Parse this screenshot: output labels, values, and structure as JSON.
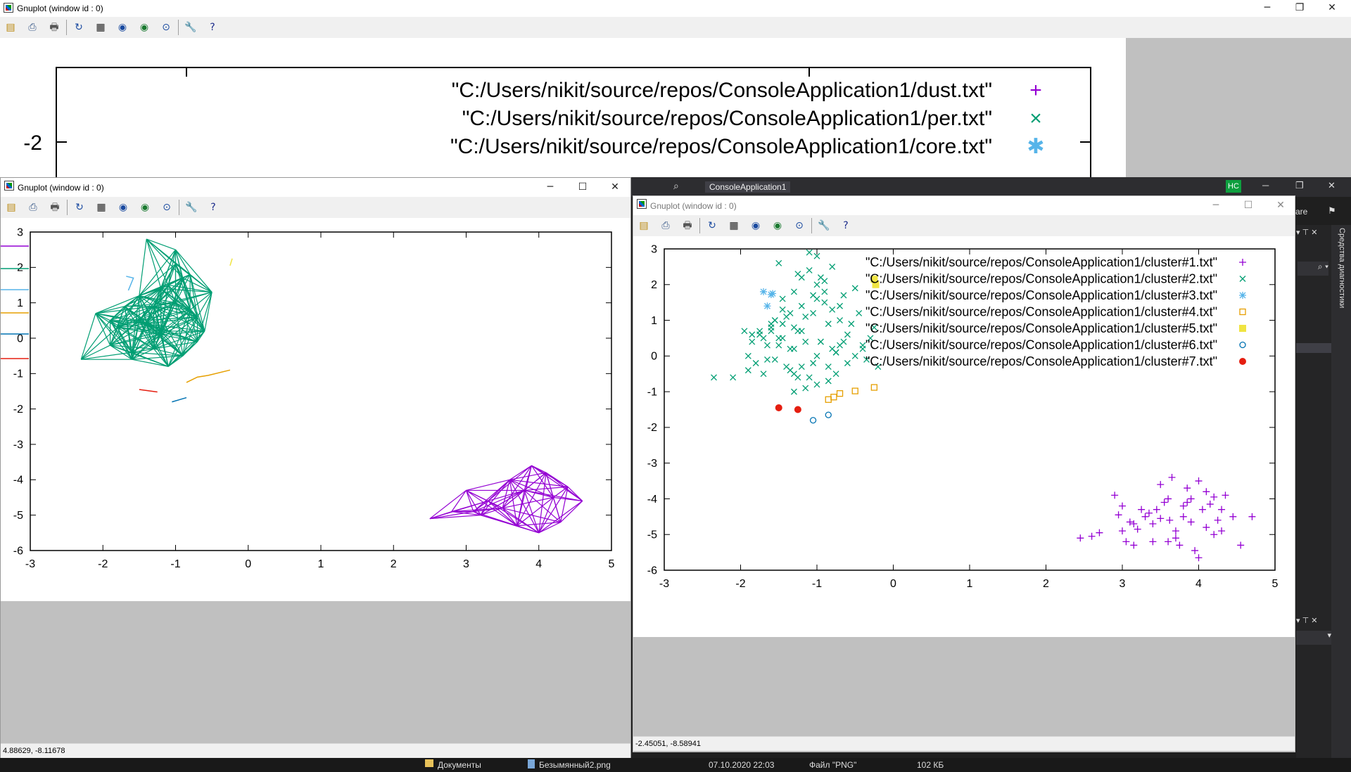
{
  "back_window": {
    "title": "Gnuplot (window id : 0)",
    "legend": [
      {
        "label": "\"C:/Users/nikit/source/repos/ConsoleApplication1/dust.txt\"",
        "symbol": "+",
        "color": "#9400d3"
      },
      {
        "label": "\"C:/Users/nikit/source/repos/ConsoleApplication1/per.txt\"",
        "symbol": "×",
        "color": "#009e73"
      },
      {
        "label": "\"C:/Users/nikit/source/repos/ConsoleApplication1/core.txt\"",
        "symbol": "✱",
        "color": "#56b4e9"
      }
    ],
    "ytick": "-2",
    "minimize": "─",
    "maximize": "❐",
    "close": "✕"
  },
  "left_window": {
    "title": "Gnuplot (window id : 0)",
    "status": "4.88629, -8.11678",
    "minimize": "─",
    "maximize": "☐",
    "close": "✕"
  },
  "right_window": {
    "title": "Gnuplot (window id : 0)",
    "status": "-2.45051, -8.58941",
    "minimize": "─",
    "maximize": "☐",
    "close": "✕"
  },
  "vs_window": {
    "title": "ConsoleApplication1",
    "avatar": "HC",
    "share": "are",
    "side_panel": "Средства диагностики",
    "minimize": "─",
    "maximize": "❐",
    "close": "✕"
  },
  "explorer": {
    "rows": [
      {
        "name": "Документы",
        "date": "",
        "type": "",
        "size": ""
      },
      {
        "name": "Безымянный2.png",
        "date": "07.10.2020 22:03",
        "type": "Файл \"PNG\"",
        "size": "102 КБ"
      }
    ],
    "ghost_row": {
      "date": "07.10.2020 22:03",
      "type": "Файл \"PNG\"",
      "size": "102 КБ"
    }
  },
  "toolbar_icons": [
    "copy-icon",
    "export-icon",
    "print-icon",
    "replot-icon",
    "grid-icon",
    "zoom-prev-icon",
    "zoom-next-icon",
    "unzoom-icon",
    "options-icon",
    "help-icon"
  ],
  "chart_data": [
    {
      "type": "line",
      "title": "",
      "xlim": [
        -3,
        5
      ],
      "ylim": [
        -6,
        3
      ],
      "xticks": [
        "-3",
        "-2",
        "-1",
        "0",
        "1",
        "2",
        "3",
        "4",
        "5"
      ],
      "yticks": [
        "3",
        "2",
        "1",
        "0",
        "-1",
        "-2",
        "-3",
        "-4",
        "-5",
        "-6"
      ],
      "series": [
        {
          "color": "#009e73",
          "x": [
            -2.3,
            -1.9,
            -1.5,
            -1.2,
            -1.0,
            -0.8,
            -0.6,
            -1.6,
            -1.3,
            -0.9,
            -1.4,
            -0.7,
            -1.1,
            -1.8,
            -2.1,
            -1.5,
            -0.9,
            -1.2,
            -0.5,
            -1.0,
            -1.7,
            -1.3,
            -0.8,
            -1.1,
            -1.4,
            -1.9,
            -1.6,
            -0.7,
            -1.2,
            -1.0
          ],
          "y": [
            -0.6,
            -0.2,
            0.5,
            1.4,
            2.5,
            1.8,
            0.2,
            -0.4,
            0.9,
            1.7,
            2.8,
            0.6,
            -0.8,
            0.3,
            0.7,
            1.2,
            -0.5,
            0.1,
            1.3,
            2.1,
            0.9,
            -0.3,
            0.8,
            1.5,
            0.4,
            0.5,
            -0.6,
            -0.1,
            0.2,
            1.0
          ]
        },
        {
          "color": "#56b4e9",
          "x": [
            -1.68,
            -1.58,
            -1.65
          ],
          "y": [
            1.75,
            1.7,
            1.35
          ]
        },
        {
          "color": "#e69f00",
          "x": [
            -0.85,
            -0.7,
            -0.55,
            -0.25
          ],
          "y": [
            -1.25,
            -1.1,
            -1.05,
            -0.9
          ]
        },
        {
          "color": "#f0e442",
          "x": [
            -0.25,
            -0.22
          ],
          "y": [
            2.05,
            2.25
          ]
        },
        {
          "color": "#0072b2",
          "x": [
            -1.05,
            -0.85
          ],
          "y": [
            -1.8,
            -1.68
          ]
        },
        {
          "color": "#e51e10",
          "x": [
            -1.5,
            -1.25
          ],
          "y": [
            -1.45,
            -1.52
          ]
        },
        {
          "color": "#9400d3",
          "x": [
            2.5,
            2.8,
            3.0,
            3.3,
            3.6,
            3.9,
            4.2,
            4.4,
            4.6,
            3.2,
            3.7,
            4.0,
            3.5,
            4.3,
            3.8,
            3.1,
            4.1
          ],
          "y": [
            -5.1,
            -4.9,
            -4.3,
            -4.6,
            -4.0,
            -3.6,
            -4.5,
            -4.2,
            -4.6,
            -5.0,
            -5.3,
            -5.5,
            -4.8,
            -5.2,
            -4.3,
            -4.9,
            -3.8
          ]
        }
      ]
    },
    {
      "type": "scatter",
      "title": "",
      "xlim": [
        -3,
        5
      ],
      "ylim": [
        -6,
        3
      ],
      "xticks": [
        "-3",
        "-2",
        "-1",
        "0",
        "1",
        "2",
        "3",
        "4",
        "5"
      ],
      "yticks": [
        "3",
        "2",
        "1",
        "0",
        "-1",
        "-2",
        "-3",
        "-4",
        "-5",
        "-6"
      ],
      "series": [
        {
          "name": "\"C:/Users/nikit/source/repos/ConsoleApplication1/cluster#1.txt\"",
          "symbol": "+",
          "color": "#9400d3",
          "x": [
            2.45,
            2.6,
            2.7,
            2.95,
            3.0,
            3.05,
            3.1,
            3.15,
            3.2,
            3.3,
            3.35,
            3.4,
            3.45,
            3.5,
            3.55,
            3.6,
            3.62,
            3.65,
            3.7,
            3.75,
            3.8,
            3.85,
            3.9,
            3.95,
            4.0,
            4.05,
            4.1,
            4.15,
            4.2,
            4.25,
            4.3,
            4.35,
            4.45,
            4.55,
            4.7,
            2.9,
            3.25,
            3.5,
            3.8,
            4.0,
            4.2,
            3.0,
            3.4,
            3.7,
            4.1,
            3.9,
            3.6,
            4.3,
            3.15,
            3.85
          ],
          "y": [
            -5.1,
            -5.05,
            -4.95,
            -4.45,
            -4.9,
            -5.2,
            -4.65,
            -4.7,
            -4.85,
            -4.5,
            -4.4,
            -5.2,
            -4.3,
            -4.55,
            -4.1,
            -4.0,
            -4.6,
            -3.4,
            -4.9,
            -5.3,
            -4.5,
            -3.7,
            -4.0,
            -5.45,
            -5.65,
            -4.3,
            -4.8,
            -4.15,
            -5.0,
            -4.6,
            -4.9,
            -3.9,
            -4.5,
            -5.3,
            -4.5,
            -3.9,
            -4.3,
            -3.6,
            -4.2,
            -3.5,
            -3.95,
            -4.2,
            -4.7,
            -5.1,
            -3.8,
            -4.65,
            -5.2,
            -4.3,
            -5.3,
            -4.1
          ]
        },
        {
          "name": "\"C:/Users/nikit/source/repos/ConsoleApplication1/cluster#2.txt\"",
          "symbol": "x",
          "color": "#009e73",
          "x": [
            -2.35,
            -2.1,
            -1.95,
            -1.9,
            -1.85,
            -1.8,
            -1.75,
            -1.7,
            -1.65,
            -1.6,
            -1.55,
            -1.5,
            -1.45,
            -1.4,
            -1.35,
            -1.3,
            -1.25,
            -1.2,
            -1.15,
            -1.1,
            -1.05,
            -1.0,
            -0.95,
            -0.9,
            -0.85,
            -0.8,
            -0.75,
            -0.7,
            -0.65,
            -0.6,
            -0.55,
            -0.5,
            -0.45,
            -0.4,
            -0.35,
            -0.3,
            -0.25,
            -0.2,
            -1.9,
            -1.7,
            -1.55,
            -1.45,
            -1.3,
            -1.2,
            -1.1,
            -1.0,
            -0.9,
            -0.8,
            -0.7,
            -0.6,
            -1.85,
            -1.65,
            -1.5,
            -1.35,
            -1.25,
            -1.15,
            -1.05,
            -0.95,
            -0.85,
            -0.75,
            -0.65,
            -1.6,
            -1.4,
            -1.2,
            -1.0,
            -0.8,
            -1.75,
            -1.5,
            -1.3,
            -1.1,
            -0.9,
            -0.7,
            -1.6,
            -1.3,
            -1.0,
            -1.45,
            -1.15,
            -0.95,
            -1.35,
            -1.05,
            -0.85,
            -1.25,
            -1.55,
            -0.5,
            -0.4,
            -1.45,
            -1.2,
            -1.0,
            -1.3,
            -0.75
          ],
          "y": [
            -0.6,
            -0.6,
            0.7,
            -0.4,
            0.4,
            -0.2,
            0.6,
            -0.5,
            0.3,
            0.8,
            -0.1,
            2.6,
            0.5,
            -0.3,
            1.2,
            0.2,
            2.3,
            0.7,
            1.1,
            2.9,
            -0.2,
            1.6,
            0.4,
            2.1,
            0.9,
            1.3,
            -0.5,
            0.3,
            1.7,
            0.6,
            0.9,
            0.0,
            1.2,
            0.2,
            -0.1,
            0.5,
            0.8,
            -0.3,
            0.0,
            0.5,
            1.0,
            0.9,
            -0.5,
            1.4,
            2.4,
            0.0,
            1.8,
            0.2,
            1.0,
            -0.2,
            0.6,
            -0.1,
            0.3,
            -0.4,
            0.7,
            -0.9,
            1.2,
            0.4,
            -0.7,
            0.1,
            0.4,
            0.7,
            1.1,
            -0.3,
            2.0,
            2.5,
            0.7,
            0.5,
            1.8,
            -0.6,
            1.5,
            1.4,
            0.9,
            0.8,
            -0.8,
            1.3,
            0.4,
            2.2,
            0.2,
            1.7,
            -0.3,
            -0.6,
            1.0,
            1.9,
            0.3,
            1.6,
            2.2,
            2.8,
            -1.0,
            0.1
          ]
        },
        {
          "name": "\"C:/Users/nikit/source/repos/ConsoleApplication1/cluster#3.txt\"",
          "symbol": "*",
          "color": "#56b4e9",
          "x": [
            -1.7,
            -1.58,
            -1.65,
            -1.6
          ],
          "y": [
            1.8,
            1.75,
            1.4,
            1.72
          ]
        },
        {
          "name": "\"C:/Users/nikit/source/repos/ConsoleApplication1/cluster#4.txt\"",
          "symbol": "□",
          "color": "#e69f00",
          "x": [
            -0.85,
            -0.78,
            -0.7,
            -0.5,
            -0.25
          ],
          "y": [
            -1.22,
            -1.15,
            -1.05,
            -0.98,
            -0.88
          ]
        },
        {
          "name": "\"C:/Users/nikit/source/repos/ConsoleApplication1/cluster#5.txt\"",
          "symbol": "■",
          "color": "#f0e442",
          "x": [
            -0.25,
            -0.23
          ],
          "y": [
            2.15,
            2.0
          ]
        },
        {
          "name": "\"C:/Users/nikit/source/repos/ConsoleApplication1/cluster#6.txt\"",
          "symbol": "○",
          "color": "#0072b2",
          "x": [
            -1.05,
            -0.85
          ],
          "y": [
            -1.8,
            -1.65
          ]
        },
        {
          "name": "\"C:/Users/nikit/source/repos/ConsoleApplication1/cluster#7.txt\"",
          "symbol": "●",
          "color": "#e51e10",
          "x": [
            -1.5,
            -1.25
          ],
          "y": [
            -1.45,
            -1.5
          ]
        }
      ]
    }
  ]
}
